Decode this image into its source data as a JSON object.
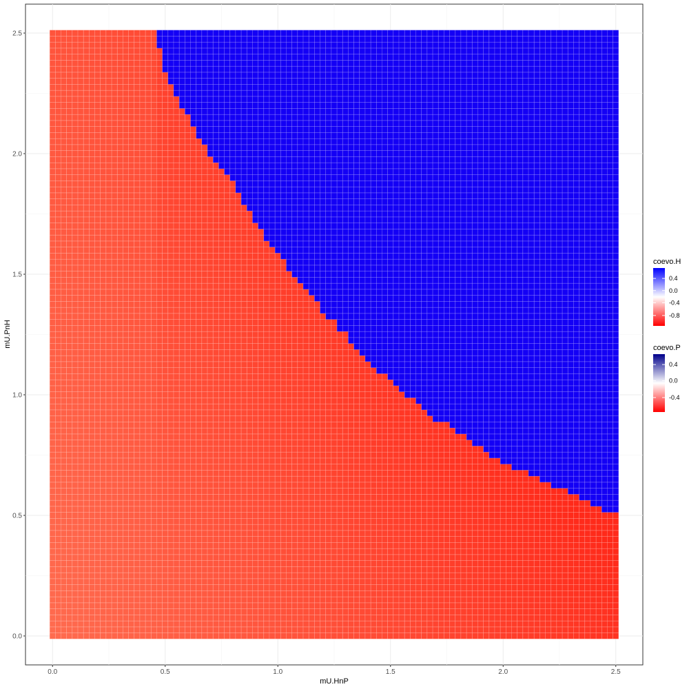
{
  "chart_data": {
    "type": "heatmap",
    "title": "",
    "xlabel": "mU.HnP",
    "ylabel": "mU.PnH",
    "xlim": [
      -0.12,
      2.62
    ],
    "ylim": [
      -0.12,
      2.62
    ],
    "x_ticks": [
      "0.0",
      "0.5",
      "1.0",
      "1.5",
      "2.0",
      "2.5"
    ],
    "y_ticks": [
      "0.0",
      "0.5",
      "1.0",
      "1.5",
      "2.0",
      "2.5"
    ],
    "grid": true,
    "grid_step": 0.025,
    "grid_range": [
      0,
      2.5
    ],
    "boundary": {
      "description": "cells above the boundary curve are blue (coevo.P), below are red (coevo.H)",
      "x": [
        2.5,
        2.4,
        2.3,
        2.2,
        2.1,
        2.0,
        1.9,
        1.8,
        1.7,
        1.6,
        1.5,
        1.4,
        1.3,
        1.2,
        1.1,
        1.0,
        0.9,
        0.8,
        0.7,
        0.65,
        0.6,
        0.55,
        0.5,
        0.48,
        0.46
      ],
      "y": [
        0.5,
        0.55,
        0.6,
        0.63,
        0.68,
        0.72,
        0.78,
        0.85,
        0.9,
        0.98,
        1.05,
        1.15,
        1.25,
        1.35,
        1.47,
        1.58,
        1.72,
        1.88,
        2.0,
        2.07,
        2.15,
        2.24,
        2.34,
        2.43,
        2.5
      ]
    },
    "colors": {
      "blue_region": "#1400f5",
      "red_low": "#ff6b4f",
      "red_high": "#ff2a1a",
      "tile_border": "#ffffff"
    },
    "legends": [
      {
        "title": "coevo.H",
        "labels": [
          "0.4",
          "0.0",
          "-0.4",
          "-0.8"
        ],
        "colors": [
          "#0000ff",
          "#ffffff",
          "#ff0000"
        ]
      },
      {
        "title": "coevo.P",
        "labels": [
          "0.4",
          "0.0",
          "-0.4"
        ],
        "colors": [
          "#00008b",
          "#ffffff",
          "#ff0000"
        ]
      }
    ],
    "legend_position": "right"
  }
}
